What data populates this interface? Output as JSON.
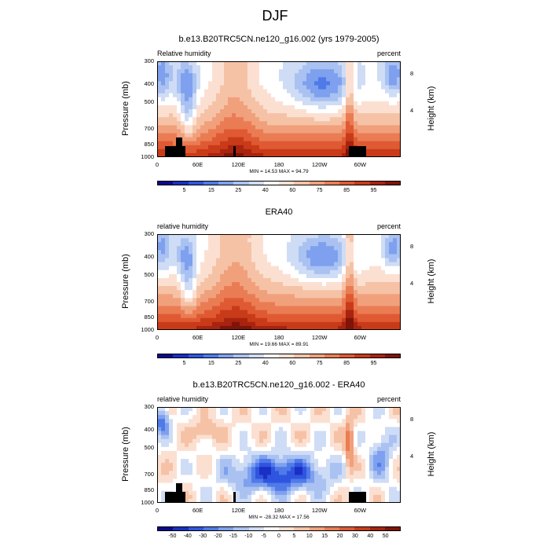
{
  "figure_title": "DJF",
  "chart_data": [
    {
      "type": "heatmap",
      "title": "b.e13.B20TRC5CN.ne120_g16.002 (yrs 1979-2005)",
      "left_label": "Relative humidity",
      "right_label": "percent",
      "ylabel": "Pressure (mb)",
      "ylabel_right": "Height (km)",
      "x_ticks": [
        "0",
        "60E",
        "120E",
        "180",
        "120W",
        "60W"
      ],
      "y_ticks": [
        "300",
        "400",
        "500",
        "700",
        "850",
        "1000"
      ],
      "y_ticks_right": [
        "8",
        "4"
      ],
      "minmax": "MIN = 14.53  MAX = 94.79",
      "colorbar_labels": [
        "5",
        "15",
        "25",
        "40",
        "60",
        "75",
        "85",
        "95"
      ],
      "ylim": [
        1000,
        300
      ],
      "xlim": [
        0,
        360
      ]
    },
    {
      "type": "heatmap",
      "title": "ERA40",
      "left_label": "relative humidity",
      "right_label": "percent",
      "ylabel": "Pressure (mb)",
      "ylabel_right": "Height (km)",
      "x_ticks": [
        "0",
        "60E",
        "120E",
        "180",
        "120W",
        "60W"
      ],
      "y_ticks": [
        "300",
        "400",
        "500",
        "700",
        "850",
        "1000"
      ],
      "y_ticks_right": [
        "8",
        "4"
      ],
      "minmax": "MIN = 19.66  MAX = 89.91",
      "colorbar_labels": [
        "5",
        "15",
        "25",
        "40",
        "60",
        "75",
        "85",
        "95"
      ],
      "ylim": [
        1000,
        300
      ],
      "xlim": [
        0,
        360
      ]
    },
    {
      "type": "heatmap",
      "title": "b.e13.B20TRC5CN.ne120_g16.002 - ERA40",
      "left_label": "relative humidity",
      "right_label": "percent",
      "ylabel": "Pressure (mb)",
      "ylabel_right": "Height (km)",
      "x_ticks": [
        "0",
        "60E",
        "120E",
        "180",
        "120W",
        "60W"
      ],
      "y_ticks": [
        "300",
        "400",
        "500",
        "700",
        "850",
        "1000"
      ],
      "y_ticks_right": [
        "8",
        "4"
      ],
      "minmax": "MIN = -28.32  MAX = 17.56",
      "colorbar_labels": [
        "-50",
        "-40",
        "-30",
        "-20",
        "-15",
        "-10",
        "-5",
        "0",
        "5",
        "10",
        "15",
        "20",
        "30",
        "40",
        "50"
      ],
      "ylim": [
        1000,
        300
      ],
      "xlim": [
        0,
        360
      ]
    }
  ],
  "palette": [
    "#0a0a8c",
    "#1a2fc4",
    "#2f55e0",
    "#4f7ae8",
    "#7ea0ee",
    "#a9c2f2",
    "#cfdcf5",
    "#ffffff",
    "#fbe0d2",
    "#f6c2a6",
    "#f1a07c",
    "#ea7c54",
    "#df5a33",
    "#c93b18",
    "#a82310",
    "#7f1408"
  ],
  "colors": {
    "land_mask": "#000000"
  }
}
